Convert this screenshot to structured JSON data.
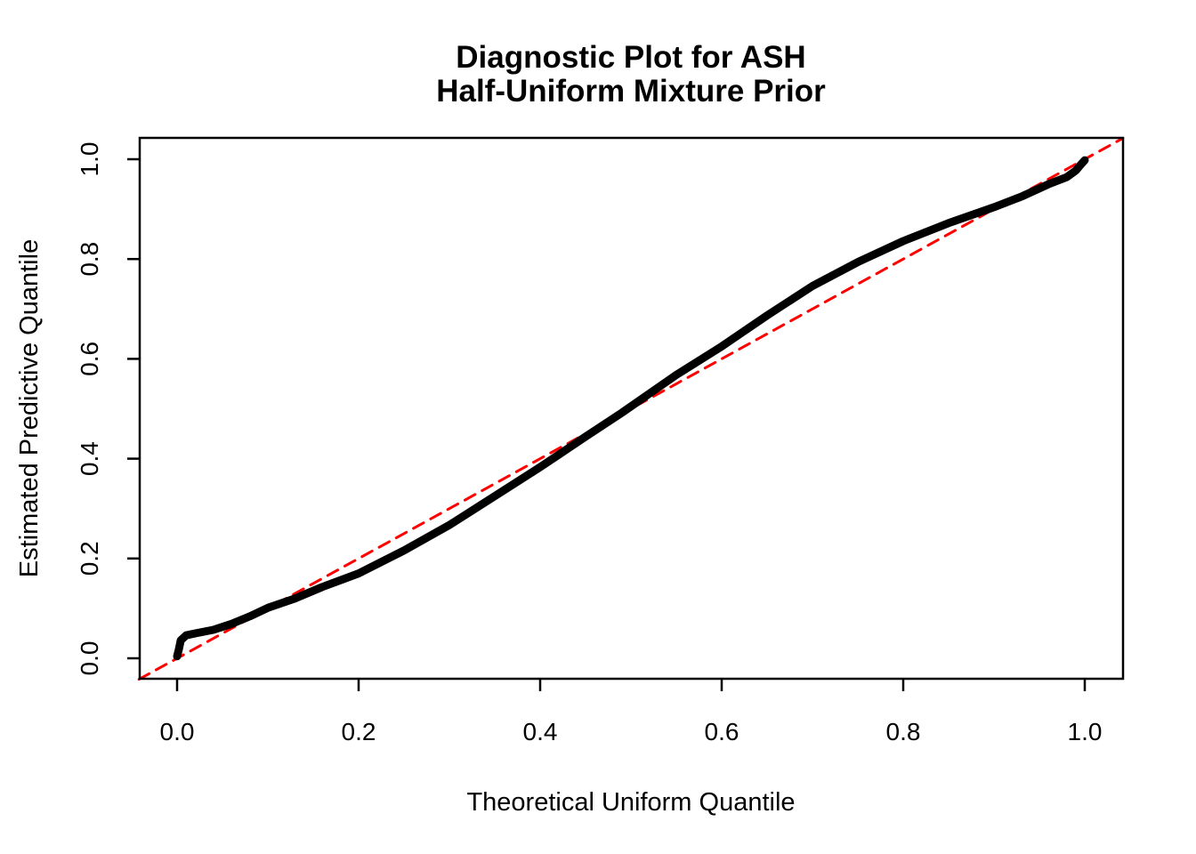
{
  "chart_data": {
    "type": "line",
    "subtype": "qq-diagnostic-plot",
    "title_line1": "Diagnostic Plot for ASH",
    "title_line2": "Half-Uniform Mixture Prior",
    "xlabel": "Theoretical Uniform Quantile",
    "ylabel": "Estimated Predictive Quantile",
    "xlim": [
      -0.042,
      1.042
    ],
    "ylim": [
      -0.041,
      1.043
    ],
    "grid": false,
    "legend_position": "none",
    "x_ticks": {
      "values": [
        0.0,
        0.2,
        0.4,
        0.6,
        0.8,
        1.0
      ],
      "labels": [
        "0.0",
        "0.2",
        "0.4",
        "0.6",
        "0.8",
        "1.0"
      ]
    },
    "y_ticks": {
      "values": [
        0.0,
        0.2,
        0.4,
        0.6,
        0.8,
        1.0
      ],
      "labels": [
        "0.0",
        "0.2",
        "0.4",
        "0.6",
        "0.8",
        "1.0"
      ]
    },
    "series": [
      {
        "name": "estimated-quantile-curve",
        "label": "Estimated predictive quantiles (dense points)",
        "type": "line",
        "style": "solid",
        "color": "#000000",
        "stroke_width": 9,
        "points": [
          [
            0.0,
            0.004
          ],
          [
            0.002,
            0.018
          ],
          [
            0.004,
            0.036
          ],
          [
            0.01,
            0.046
          ],
          [
            0.02,
            0.05
          ],
          [
            0.04,
            0.057
          ],
          [
            0.06,
            0.069
          ],
          [
            0.08,
            0.084
          ],
          [
            0.1,
            0.101
          ],
          [
            0.13,
            0.12
          ],
          [
            0.16,
            0.143
          ],
          [
            0.2,
            0.17
          ],
          [
            0.25,
            0.216
          ],
          [
            0.3,
            0.267
          ],
          [
            0.35,
            0.325
          ],
          [
            0.4,
            0.383
          ],
          [
            0.45,
            0.444
          ],
          [
            0.49,
            0.492
          ],
          [
            0.52,
            0.53
          ],
          [
            0.55,
            0.568
          ],
          [
            0.6,
            0.625
          ],
          [
            0.65,
            0.687
          ],
          [
            0.7,
            0.746
          ],
          [
            0.75,
            0.794
          ],
          [
            0.8,
            0.836
          ],
          [
            0.85,
            0.872
          ],
          [
            0.9,
            0.904
          ],
          [
            0.93,
            0.925
          ],
          [
            0.96,
            0.95
          ],
          [
            0.98,
            0.964
          ],
          [
            0.99,
            0.977
          ],
          [
            0.996,
            0.99
          ],
          [
            1.0,
            0.998
          ]
        ]
      },
      {
        "name": "identity-reference-line",
        "label": "y = x reference",
        "type": "line",
        "style": "dashed",
        "color": "#FF0000",
        "stroke_width": 3,
        "dash_pattern": [
          13,
          9
        ],
        "points": [
          [
            -0.042,
            -0.042
          ],
          [
            1.042,
            1.042
          ]
        ]
      }
    ]
  },
  "colors": {
    "background": "#FFFFFF",
    "axis": "#000000",
    "curve": "#000000",
    "reference": "#FF0000"
  }
}
